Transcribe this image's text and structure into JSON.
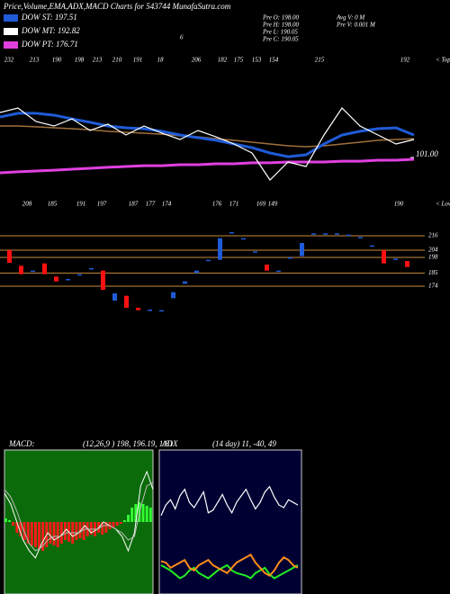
{
  "header": {
    "title": "Price,Volume,EMA,ADX,MACD Charts for 543744 MunafaSutra.com",
    "legend": [
      {
        "name": "DOW ST: 197.51",
        "color": "#1f5bd6"
      },
      {
        "name": "DOW MT: 192.82",
        "color": "#ffffff"
      },
      {
        "name": "DOW PT: 176.71",
        "color": "#e040e0"
      }
    ],
    "marker": "6",
    "info_left": [
      "Pre O: 198.00",
      "Pre H: 198.00",
      "Pre L: 190.05",
      "Pre C: 190.05"
    ],
    "info_right": [
      "Avg V: 0 M",
      "Pre V: 0.001 M"
    ]
  },
  "chart_data": [
    {
      "type": "line",
      "tops": [
        "232",
        "213",
        "190",
        "198",
        "213",
        "210",
        "191",
        "18",
        "206",
        "182",
        "175",
        "153",
        "154",
        "215",
        "192"
      ],
      "tops_caption": "< Tops",
      "lows": [
        "208",
        "185",
        "191",
        "197",
        "187",
        "177",
        "174",
        "176",
        "171",
        "169",
        "149",
        "190"
      ],
      "lows_caption": "< Lows",
      "ylim": [
        90,
        134
      ],
      "yticks": [
        {
          "value": 101,
          "label": "101.00"
        }
      ],
      "series": [
        {
          "name": "DOW PT: 176.71",
          "color": "#e040e0",
          "values": [
            93.5,
            94,
            94.4,
            94.8,
            95.3,
            95.7,
            96.2,
            96.6,
            97,
            97,
            97.5,
            97.5,
            97.9,
            97.9,
            98.4,
            98.4,
            98.8,
            98.8,
            98.8,
            99.2,
            99.2,
            99.7,
            99.7,
            100.1
          ]
        },
        {
          "name": "DOW MT: 192.82",
          "color": "#a0703a",
          "values": [
            116.4,
            116.4,
            116,
            115.5,
            115.1,
            114.6,
            113.8,
            113.3,
            112.9,
            112.4,
            111.6,
            111.1,
            110.2,
            109.4,
            108.5,
            107.6,
            106.7,
            106.3,
            106.7,
            107.6,
            108.5,
            109.4,
            109.8,
            110.2
          ]
        },
        {
          "name": "DOW ST: 197.51",
          "color": "#1f5bd6",
          "values": [
            120.8,
            122.6,
            122.6,
            121.7,
            119.9,
            118.2,
            116.4,
            115.5,
            115.1,
            113.8,
            112,
            110.7,
            109.4,
            107.6,
            105.8,
            103.2,
            101.4,
            102.3,
            107.6,
            112,
            113.8,
            115.1,
            115.5,
            112
          ]
        },
        {
          "name": "Price",
          "color": "#ffffff",
          "values": [
            123,
            125.2,
            118.6,
            116.4,
            119.9,
            114.2,
            117.3,
            112,
            116.4,
            112.9,
            109.8,
            114.2,
            111.1,
            107.6,
            103.2,
            90,
            98.8,
            96.6,
            112,
            125.2,
            116.4,
            112,
            107.6,
            109.8
          ]
        }
      ]
    },
    {
      "type": "candlestick",
      "ylim": [
        150,
        225
      ],
      "yticks": [
        216,
        204,
        198,
        185,
        174
      ],
      "up_color": "#1f5bd6",
      "down_color": "#ff1010",
      "grid_color": "#c88a3a",
      "open": [
        204,
        191,
        186,
        193,
        182,
        179,
        183,
        188,
        187,
        162,
        166,
        156,
        154,
        153,
        164,
        176,
        185,
        195,
        196,
        218,
        213,
        202,
        192,
        186,
        197,
        199,
        217,
        217,
        217,
        216,
        214,
        207,
        204,
        196,
        195
      ],
      "close": [
        193.5,
        184,
        187,
        184,
        178,
        180,
        184,
        189,
        171,
        168,
        156,
        154,
        154.5,
        154,
        169,
        178,
        187,
        196,
        214,
        219,
        214,
        203,
        187,
        187,
        198,
        210,
        218,
        218,
        218,
        217,
        215,
        208,
        193,
        197,
        190
      ]
    },
    {
      "type": "macd",
      "label": "MACD:",
      "params": "(12,26,9 ) 198, 196.19, 1.81",
      "ylim": [
        -20,
        20
      ],
      "background": "#0b6b0b",
      "pos_color": "#33ff33",
      "neg_color": "#ff1a1a",
      "histogram": [
        1,
        0.5,
        -1,
        -3,
        -4,
        -5,
        -6,
        -6.5,
        -7,
        -7.5,
        -8,
        -7,
        -6,
        -6.5,
        -7,
        -6,
        -5,
        -5.5,
        -6,
        -5,
        -4.5,
        -5,
        -4,
        -3.5,
        -4,
        -3,
        -3.5,
        -3,
        -2,
        -1.5,
        -1,
        -0.5,
        0.5,
        2,
        4,
        5,
        5.5,
        5,
        4.5,
        4
      ],
      "series": [
        {
          "name": "MACD",
          "color": "#ffffff",
          "values": [
            8,
            5,
            0,
            -5,
            -8,
            -10,
            -6,
            -3,
            -5,
            -4,
            -2,
            -4,
            -3,
            -1,
            -3,
            -2,
            0,
            -1,
            -2,
            -4,
            -8,
            -3,
            10,
            14,
            9
          ]
        },
        {
          "name": "Signal",
          "color": "#bbbbbb",
          "values": [
            9,
            7,
            3,
            -2,
            -6,
            -8,
            -7,
            -5,
            -4,
            -4,
            -3,
            -3,
            -3,
            -2,
            -2,
            -2,
            -1,
            -1,
            -2,
            -3,
            -5,
            -4,
            4,
            10,
            11
          ]
        }
      ]
    },
    {
      "type": "adx",
      "label": "ADX",
      "params": "(14 day) 11, -40, 49",
      "ylim": [
        0,
        110
      ],
      "background": "#000033",
      "series": [
        {
          "name": "ADX",
          "color": "#ffffff",
          "values": [
            60,
            68,
            72,
            65,
            75,
            80,
            70,
            66,
            72,
            78,
            62,
            64,
            70,
            76,
            68,
            62,
            70,
            75,
            80,
            72,
            65,
            70,
            78,
            82,
            74,
            68,
            66,
            72,
            70,
            68
          ]
        },
        {
          "name": "+DI",
          "color": "#22ee22",
          "values": [
            22,
            20,
            18,
            15,
            12,
            14,
            18,
            20,
            16,
            14,
            12,
            15,
            18,
            20,
            22,
            18,
            16,
            15,
            14,
            12,
            16,
            18,
            20,
            15,
            12,
            14,
            16,
            18,
            20,
            22
          ]
        },
        {
          "name": "-DI",
          "color": "#ff8c1a",
          "values": [
            25,
            24,
            20,
            22,
            24,
            26,
            20,
            18,
            22,
            24,
            26,
            22,
            20,
            18,
            16,
            20,
            24,
            26,
            28,
            30,
            24,
            20,
            16,
            14,
            18,
            24,
            28,
            26,
            22,
            20
          ]
        }
      ]
    }
  ]
}
